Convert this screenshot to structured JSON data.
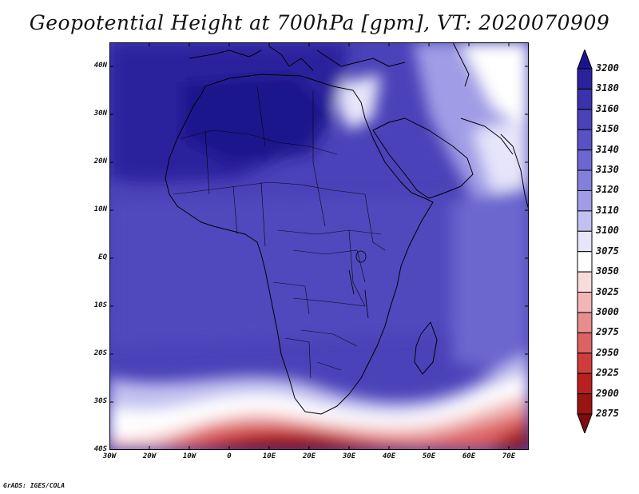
{
  "title": "Geopotential Height at 700hPa [gpm], VT: 2020070909",
  "footer": "GrADS: IGES/COLA",
  "map": {
    "lon_range": [
      -30,
      75
    ],
    "lat_range": [
      -40,
      45
    ],
    "lat_ticks": [
      "40N",
      "30N",
      "20N",
      "10N",
      "EQ",
      "10S",
      "20S",
      "30S",
      "40S"
    ],
    "lon_ticks": [
      "30W",
      "20W",
      "10W",
      "0",
      "10E",
      "20E",
      "30E",
      "40E",
      "50E",
      "60E",
      "70E"
    ],
    "field": "Geopotential Height at 700hPa"
  },
  "colorbar": {
    "levels": [
      "3200",
      "3180",
      "3160",
      "3150",
      "3140",
      "3130",
      "3120",
      "3110",
      "3100",
      "3075",
      "3050",
      "3025",
      "3000",
      "2975",
      "2950",
      "2925",
      "2900",
      "2875"
    ],
    "colors": [
      "#1a148c",
      "#2a229d",
      "#3a32ac",
      "#4a42b8",
      "#5a52c4",
      "#6c66cf",
      "#8480da",
      "#a09de6",
      "#c2c0f0",
      "#e6e5fa",
      "#ffffff",
      "#f9dbdb",
      "#f2b6b6",
      "#e88d8d",
      "#dd6363",
      "#d03c3c",
      "#b82020",
      "#9a1414",
      "#7e0d0d"
    ]
  }
}
